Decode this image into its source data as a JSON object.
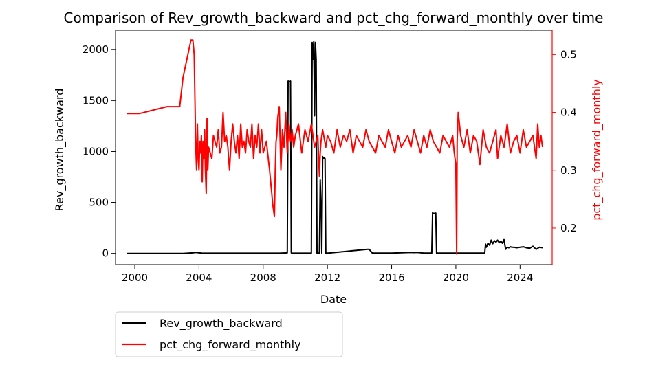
{
  "chart_data": {
    "type": "line",
    "title": "Comparison of Rev_growth_backward and pct_chg_forward_monthly over time",
    "xlabel": "Date",
    "ylabel_left": "Rev_growth_backward",
    "ylabel_right": "pct_chg_forward_monthly",
    "x_ticks": [
      "2000",
      "2004",
      "2008",
      "2012",
      "2016",
      "2020",
      "2024"
    ],
    "y_left_ticks": [
      "0",
      "500",
      "1000",
      "1500",
      "2000"
    ],
    "y_right_ticks": [
      "0.2",
      "0.3",
      "0.4",
      "0.5"
    ],
    "xlim": [
      1998.8,
      2026.0
    ],
    "y_left_lim": [
      -110,
      2190
    ],
    "y_right_lim": [
      0.137,
      0.542
    ],
    "grid": false,
    "legend_position": "below-left",
    "colors": {
      "left_series": "#000000",
      "right_series": "#ff0000",
      "right_axis": "#ff0000"
    },
    "series": [
      {
        "name": "Rev_growth_backward",
        "axis": "left",
        "color": "#000000",
        "x": [
          1999.5,
          2003.0,
          2003.6,
          2003.8,
          2004.2,
          2009.0,
          2009.5,
          2009.55,
          2009.6,
          2009.65,
          2009.7,
          2009.75,
          2009.8,
          2011.0,
          2011.05,
          2011.1,
          2011.15,
          2011.2,
          2011.25,
          2011.3,
          2011.35,
          2011.5,
          2011.55,
          2011.6,
          2011.65,
          2011.7,
          2011.75,
          2011.8,
          2011.85,
          2011.9,
          2012.0,
          2012.05,
          2014.5,
          2014.55,
          2014.6,
          2014.8,
          2014.85,
          2016.0,
          2017.2,
          2017.4,
          2017.6,
          2018.0,
          2018.5,
          2018.55,
          2018.6,
          2018.75,
          2018.8,
          2021.8,
          2021.85,
          2021.9,
          2022.0,
          2022.1,
          2022.2,
          2022.3,
          2022.4,
          2022.5,
          2022.6,
          2022.7,
          2022.8,
          2022.9,
          2023.0,
          2023.1,
          2023.2,
          2023.3,
          2023.4,
          2023.5,
          2023.6,
          2023.8,
          2024.0,
          2024.2,
          2024.4,
          2024.6,
          2024.8,
          2025.0,
          2025.2,
          2025.4
        ],
        "y": [
          0,
          0,
          5,
          10,
          2,
          2,
          5,
          1690,
          1690,
          1685,
          1690,
          5,
          2,
          3,
          2070,
          1900,
          2080,
          1350,
          2070,
          1900,
          3,
          3,
          720,
          480,
          3,
          950,
          930,
          940,
          930,
          3,
          3,
          3,
          40,
          40,
          40,
          3,
          3,
          3,
          10,
          8,
          10,
          3,
          3,
          400,
          390,
          395,
          3,
          3,
          90,
          60,
          100,
          80,
          130,
          95,
          125,
          110,
          130,
          105,
          120,
          100,
          135,
          40,
          60,
          55,
          65,
          60,
          60,
          55,
          60,
          65,
          55,
          50,
          70,
          40,
          60,
          55
        ]
      },
      {
        "name": "pct_chg_forward_monthly",
        "axis": "right",
        "color": "#ff0000",
        "x": [
          1999.5,
          2000.3,
          2002.0,
          2002.8,
          2003.0,
          2003.5,
          2003.62,
          2003.7,
          2003.8,
          2003.85,
          2003.9,
          2003.95,
          2004.0,
          2004.05,
          2004.1,
          2004.15,
          2004.2,
          2004.25,
          2004.3,
          2004.35,
          2004.4,
          2004.45,
          2004.5,
          2004.55,
          2004.6,
          2004.7,
          2004.8,
          2004.9,
          2005.0,
          2005.1,
          2005.2,
          2005.3,
          2005.4,
          2005.5,
          2005.6,
          2005.7,
          2005.8,
          2005.9,
          2006.0,
          2006.1,
          2006.2,
          2006.3,
          2006.4,
          2006.5,
          2006.6,
          2006.7,
          2006.8,
          2006.9,
          2007.0,
          2007.1,
          2007.2,
          2007.3,
          2007.4,
          2007.5,
          2007.6,
          2007.7,
          2007.8,
          2007.9,
          2008.0,
          2008.2,
          2008.4,
          2008.6,
          2008.7,
          2008.75,
          2008.8,
          2008.85,
          2008.9,
          2009.0,
          2009.1,
          2009.2,
          2009.3,
          2009.4,
          2009.5,
          2009.6,
          2009.7,
          2009.8,
          2009.9,
          2010.0,
          2010.2,
          2010.4,
          2010.6,
          2010.8,
          2011.0,
          2011.2,
          2011.4,
          2011.5,
          2011.55,
          2011.6,
          2011.7,
          2011.9,
          2012.0,
          2012.2,
          2012.4,
          2012.6,
          2012.8,
          2013.0,
          2013.2,
          2013.4,
          2013.6,
          2013.8,
          2014.0,
          2014.2,
          2014.4,
          2014.6,
          2014.8,
          2015.0,
          2015.2,
          2015.4,
          2015.6,
          2015.8,
          2016.0,
          2016.2,
          2016.4,
          2016.6,
          2016.8,
          2017.0,
          2017.2,
          2017.4,
          2017.6,
          2017.8,
          2018.0,
          2018.2,
          2018.4,
          2018.6,
          2018.8,
          2019.0,
          2019.2,
          2019.4,
          2019.6,
          2019.8,
          2019.9,
          2020.0,
          2020.05,
          2020.08,
          2020.15,
          2020.3,
          2020.5,
          2020.7,
          2020.9,
          2021.1,
          2021.3,
          2021.5,
          2021.7,
          2021.9,
          2022.1,
          2022.3,
          2022.5,
          2022.6,
          2022.8,
          2023.0,
          2023.2,
          2023.4,
          2023.6,
          2023.8,
          2024.0,
          2024.2,
          2024.4,
          2024.6,
          2024.8,
          2025.0,
          2025.1,
          2025.2,
          2025.3,
          2025.4
        ],
        "y": [
          0.398,
          0.398,
          0.41,
          0.41,
          0.46,
          0.525,
          0.525,
          0.5,
          0.34,
          0.3,
          0.38,
          0.32,
          0.3,
          0.35,
          0.33,
          0.36,
          0.28,
          0.35,
          0.32,
          0.37,
          0.3,
          0.26,
          0.39,
          0.3,
          0.34,
          0.33,
          0.32,
          0.36,
          0.35,
          0.34,
          0.37,
          0.33,
          0.34,
          0.4,
          0.35,
          0.36,
          0.34,
          0.3,
          0.35,
          0.38,
          0.35,
          0.33,
          0.36,
          0.32,
          0.38,
          0.34,
          0.35,
          0.33,
          0.37,
          0.35,
          0.34,
          0.38,
          0.32,
          0.36,
          0.34,
          0.38,
          0.33,
          0.37,
          0.33,
          0.35,
          0.3,
          0.24,
          0.22,
          0.3,
          0.35,
          0.36,
          0.39,
          0.41,
          0.3,
          0.37,
          0.34,
          0.4,
          0.33,
          0.38,
          0.35,
          0.37,
          0.34,
          0.36,
          0.38,
          0.33,
          0.37,
          0.35,
          0.38,
          0.34,
          0.36,
          0.29,
          0.33,
          0.35,
          0.37,
          0.34,
          0.36,
          0.35,
          0.33,
          0.37,
          0.34,
          0.36,
          0.35,
          0.37,
          0.33,
          0.36,
          0.35,
          0.34,
          0.37,
          0.35,
          0.34,
          0.33,
          0.36,
          0.35,
          0.34,
          0.37,
          0.35,
          0.33,
          0.36,
          0.34,
          0.35,
          0.36,
          0.34,
          0.37,
          0.35,
          0.33,
          0.36,
          0.34,
          0.37,
          0.35,
          0.34,
          0.33,
          0.36,
          0.35,
          0.34,
          0.36,
          0.33,
          0.31,
          0.155,
          0.35,
          0.4,
          0.36,
          0.34,
          0.37,
          0.33,
          0.36,
          0.35,
          0.31,
          0.37,
          0.34,
          0.33,
          0.35,
          0.37,
          0.32,
          0.36,
          0.34,
          0.38,
          0.33,
          0.35,
          0.36,
          0.33,
          0.37,
          0.34,
          0.35,
          0.36,
          0.32,
          0.38,
          0.34,
          0.36,
          0.34
        ]
      }
    ]
  },
  "legend": {
    "items": [
      {
        "label": "Rev_growth_backward",
        "color": "#000000"
      },
      {
        "label": "pct_chg_forward_monthly",
        "color": "#ff0000"
      }
    ]
  }
}
